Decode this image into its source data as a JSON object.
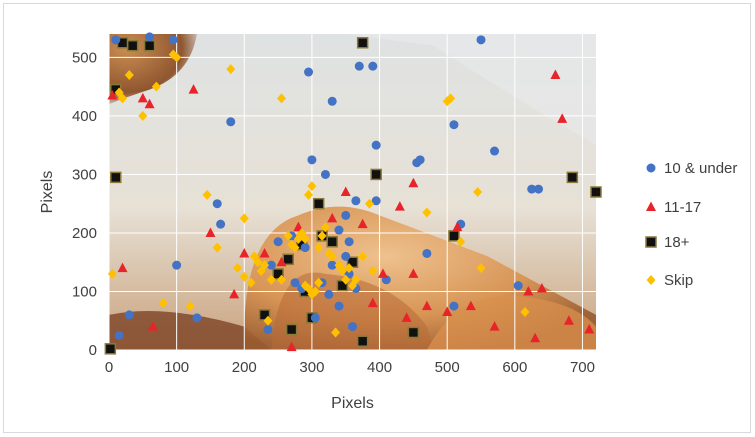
{
  "chart_data": {
    "type": "scatter",
    "xlabel": "Pixels",
    "ylabel": "Pixels",
    "xlim": [
      0,
      720
    ],
    "ylim": [
      0,
      540
    ],
    "x_ticks": [
      "0",
      "100",
      "200",
      "300",
      "400",
      "500",
      "600",
      "700"
    ],
    "y_ticks": [
      "0",
      "100",
      "200",
      "300",
      "400",
      "500"
    ],
    "grid": true,
    "legend_position": "right",
    "series": [
      {
        "name": "10 & under",
        "marker": "circle",
        "color": "#4472c4",
        "points": [
          [
            15,
            25
          ],
          [
            100,
            145
          ],
          [
            130,
            55
          ],
          [
            160,
            250
          ],
          [
            165,
            215
          ],
          [
            180,
            390
          ],
          [
            235,
            35
          ],
          [
            240,
            145
          ],
          [
            250,
            185
          ],
          [
            270,
            195
          ],
          [
            285,
            105
          ],
          [
            295,
            475
          ],
          [
            300,
            325
          ],
          [
            320,
            300
          ],
          [
            330,
            425
          ],
          [
            340,
            205
          ],
          [
            350,
            160
          ],
          [
            355,
            130
          ],
          [
            360,
            40
          ],
          [
            365,
            255
          ],
          [
            370,
            485
          ],
          [
            390,
            485
          ],
          [
            395,
            350
          ],
          [
            395,
            255
          ],
          [
            410,
            120
          ],
          [
            455,
            320
          ],
          [
            460,
            325
          ],
          [
            470,
            165
          ],
          [
            510,
            75
          ],
          [
            510,
            385
          ],
          [
            520,
            215
          ],
          [
            550,
            530
          ],
          [
            570,
            340
          ],
          [
            625,
            275
          ],
          [
            635,
            275
          ],
          [
            605,
            110
          ],
          [
            30,
            60
          ],
          [
            10,
            530
          ],
          [
            60,
            535
          ],
          [
            95,
            530
          ],
          [
            305,
            55
          ],
          [
            315,
            115
          ],
          [
            325,
            95
          ],
          [
            340,
            75
          ],
          [
            275,
            115
          ],
          [
            290,
            175
          ],
          [
            355,
            185
          ],
          [
            365,
            105
          ],
          [
            330,
            145
          ],
          [
            350,
            230
          ]
        ]
      },
      {
        "name": "11-17",
        "marker": "triangle",
        "color": "#e8242a",
        "points": [
          [
            5,
            435
          ],
          [
            20,
            140
          ],
          [
            50,
            430
          ],
          [
            60,
            420
          ],
          [
            65,
            40
          ],
          [
            125,
            445
          ],
          [
            150,
            200
          ],
          [
            185,
            95
          ],
          [
            200,
            165
          ],
          [
            230,
            165
          ],
          [
            255,
            150
          ],
          [
            270,
            5
          ],
          [
            280,
            210
          ],
          [
            330,
            225
          ],
          [
            350,
            270
          ],
          [
            375,
            215
          ],
          [
            390,
            80
          ],
          [
            405,
            130
          ],
          [
            430,
            245
          ],
          [
            440,
            55
          ],
          [
            450,
            285
          ],
          [
            450,
            130
          ],
          [
            470,
            75
          ],
          [
            500,
            65
          ],
          [
            515,
            210
          ],
          [
            535,
            75
          ],
          [
            570,
            40
          ],
          [
            620,
            100
          ],
          [
            630,
            20
          ],
          [
            640,
            105
          ],
          [
            660,
            470
          ],
          [
            670,
            395
          ],
          [
            680,
            50
          ],
          [
            710,
            35
          ]
        ]
      },
      {
        "name": "18+",
        "marker": "square",
        "color": "#111111",
        "points": [
          [
            2,
            2
          ],
          [
            10,
            295
          ],
          [
            10,
            445
          ],
          [
            20,
            525
          ],
          [
            35,
            520
          ],
          [
            60,
            520
          ],
          [
            230,
            60
          ],
          [
            250,
            130
          ],
          [
            270,
            35
          ],
          [
            285,
            180
          ],
          [
            300,
            55
          ],
          [
            310,
            250
          ],
          [
            330,
            185
          ],
          [
            345,
            110
          ],
          [
            360,
            150
          ],
          [
            375,
            525
          ],
          [
            375,
            15
          ],
          [
            395,
            300
          ],
          [
            450,
            30
          ],
          [
            510,
            195
          ],
          [
            685,
            295
          ],
          [
            720,
            270
          ],
          [
            290,
            100
          ],
          [
            265,
            155
          ],
          [
            315,
            195
          ]
        ]
      },
      {
        "name": "Skip",
        "marker": "diamond",
        "color": "#ffc000",
        "points": [
          [
            5,
            130
          ],
          [
            15,
            440
          ],
          [
            20,
            430
          ],
          [
            30,
            470
          ],
          [
            50,
            400
          ],
          [
            70,
            450
          ],
          [
            80,
            80
          ],
          [
            100,
            500
          ],
          [
            120,
            75
          ],
          [
            145,
            265
          ],
          [
            160,
            175
          ],
          [
            180,
            480
          ],
          [
            190,
            140
          ],
          [
            200,
            225
          ],
          [
            210,
            115
          ],
          [
            215,
            160
          ],
          [
            220,
            150
          ],
          [
            225,
            135
          ],
          [
            230,
            145
          ],
          [
            235,
            50
          ],
          [
            240,
            120
          ],
          [
            255,
            120
          ],
          [
            255,
            430
          ],
          [
            265,
            195
          ],
          [
            270,
            180
          ],
          [
            275,
            175
          ],
          [
            280,
            190
          ],
          [
            285,
            200
          ],
          [
            290,
            190
          ],
          [
            290,
            110
          ],
          [
            295,
            105
          ],
          [
            295,
            265
          ],
          [
            300,
            280
          ],
          [
            300,
            95
          ],
          [
            305,
            100
          ],
          [
            310,
            115
          ],
          [
            310,
            175
          ],
          [
            315,
            195
          ],
          [
            320,
            210
          ],
          [
            325,
            165
          ],
          [
            330,
            160
          ],
          [
            335,
            30
          ],
          [
            340,
            145
          ],
          [
            345,
            135
          ],
          [
            350,
            120
          ],
          [
            355,
            140
          ],
          [
            360,
            110
          ],
          [
            365,
            120
          ],
          [
            375,
            160
          ],
          [
            385,
            250
          ],
          [
            390,
            135
          ],
          [
            470,
            235
          ],
          [
            500,
            425
          ],
          [
            505,
            430
          ],
          [
            520,
            185
          ],
          [
            545,
            270
          ],
          [
            550,
            140
          ],
          [
            615,
            65
          ],
          [
            200,
            125
          ],
          [
            95,
            505
          ]
        ]
      }
    ]
  }
}
